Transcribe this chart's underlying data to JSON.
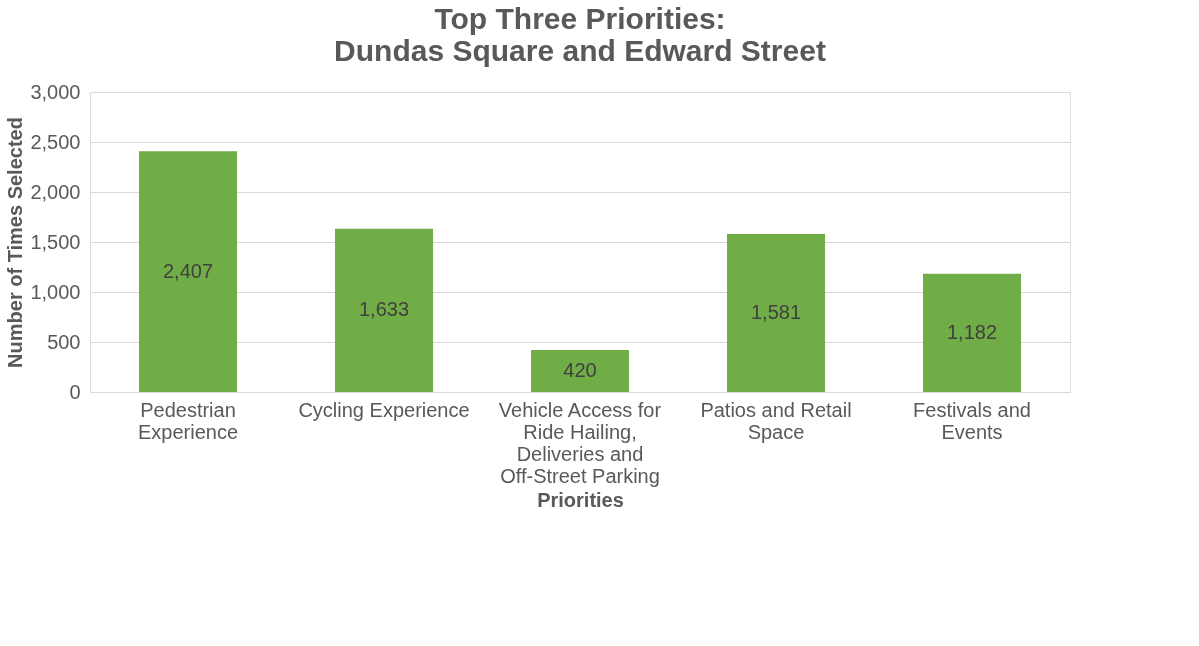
{
  "chart_data": {
    "type": "bar",
    "title": "Top Three Priorities:\nDundas Square and Edward Street",
    "xlabel": "Priorities",
    "ylabel": "Number of Times Selected",
    "categories": [
      "Pedestrian Experience",
      "Cycling Experience",
      "Vehicle Access for Ride Hailing, Deliveries and Off-Street Parking",
      "Patios and Retail Space",
      "Festivals and Events"
    ],
    "values": [
      2407,
      1633,
      420,
      1581,
      1182
    ],
    "color": "#70ad47",
    "value_labels": [
      "2,407",
      "1,633",
      "420",
      "1,581",
      "1,182"
    ],
    "ylim": [
      0,
      3000
    ],
    "yticks": [
      0,
      {
        "value": 500,
        "label": "500"
      },
      {
        "value": 1000,
        "label": "1,000"
      },
      {
        "value": 1500,
        "label": "1,500"
      },
      {
        "value": 2000,
        "label": "2,000"
      },
      {
        "value": 2500,
        "label": "2,500"
      },
      {
        "value": 3000,
        "label": "3,000"
      }
    ],
    "grid": "y"
  }
}
